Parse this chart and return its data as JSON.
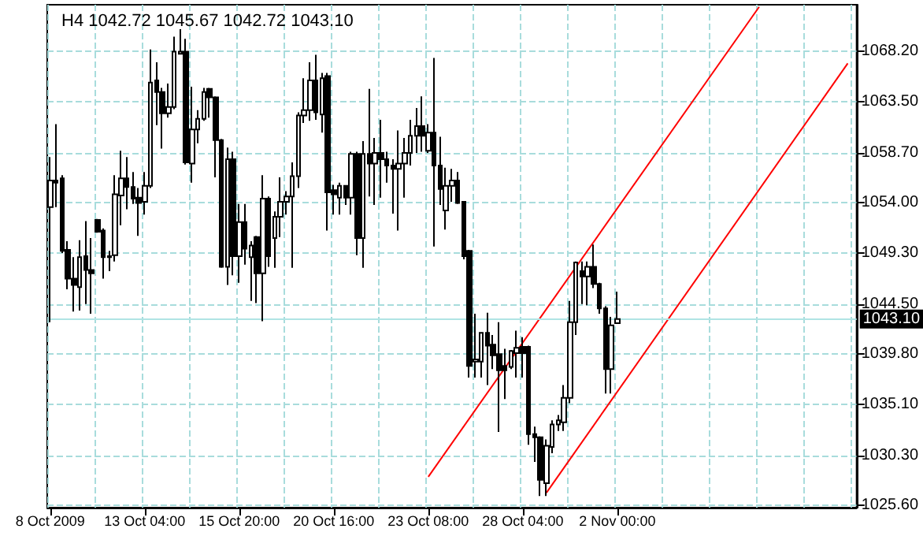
{
  "chart_data": {
    "type": "candlestick",
    "title": "H4 1042.72 1045.67 1042.72 1043.10",
    "categories": [
      "8 Oct 2009",
      null,
      null,
      null,
      null,
      null,
      null,
      null,
      null,
      null,
      null,
      null,
      null,
      null,
      null,
      null,
      "13 Oct 04:00",
      null,
      null,
      null,
      null,
      null,
      null,
      null,
      null,
      null,
      null,
      null,
      null,
      null,
      null,
      null,
      "15 Oct 20:00",
      null,
      null,
      null,
      null,
      null,
      null,
      null,
      null,
      null,
      null,
      null,
      null,
      null,
      null,
      null,
      "20 Oct 16:00",
      null,
      null,
      null,
      null,
      null,
      null,
      null,
      null,
      null,
      null,
      null,
      null,
      null,
      null,
      null,
      "23 Oct 08:00",
      null,
      null,
      null,
      null,
      null,
      null,
      null,
      null,
      null,
      null,
      null,
      null,
      null,
      null,
      null,
      "28 Oct 04:00",
      null,
      null,
      null,
      null,
      null,
      null,
      null,
      null,
      null,
      null,
      null,
      null,
      null,
      null,
      null,
      "2 Nov 00:00",
      null,
      null,
      null,
      null,
      null,
      null,
      null,
      null,
      null,
      null,
      null,
      null,
      null,
      null,
      null,
      null,
      null,
      null,
      null,
      null,
      null,
      null,
      null,
      null,
      null,
      null,
      null,
      null,
      null,
      null,
      null,
      null,
      null,
      null,
      null,
      null,
      null,
      null,
      null,
      null
    ],
    "ohlc": [
      [
        1053.6,
        1058.3,
        1042.8,
        1056.1
      ],
      [
        1056.1,
        1061.4,
        1053.6,
        1055.9
      ],
      [
        1056.3,
        1056.6,
        1049.3,
        1049.5
      ],
      [
        1049.6,
        1050.4,
        1045.9,
        1046.9
      ],
      [
        1046.9,
        1048.9,
        1043.8,
        1046.3
      ],
      [
        1046.1,
        1050.5,
        1043.9,
        1048.9
      ],
      [
        1049.0,
        1052.3,
        1044.5,
        1047.7
      ],
      [
        1047.7,
        1050.7,
        1043.6,
        1047.4
      ],
      [
        1052.4,
        1052.5,
        1051.2,
        1051.3
      ],
      [
        1051.4,
        1051.6,
        1046.9,
        1048.9
      ],
      [
        1048.9,
        1049.5,
        1047.6,
        1049.0
      ],
      [
        1049.1,
        1056.6,
        1048.5,
        1054.8
      ],
      [
        1054.7,
        1058.9,
        1051.9,
        1056.3
      ],
      [
        1056.3,
        1058.3,
        1053.4,
        1055.5
      ],
      [
        1055.5,
        1056.9,
        1053.9,
        1054.4
      ],
      [
        1054.5,
        1055.4,
        1050.9,
        1054.0
      ],
      [
        1054.1,
        1056.9,
        1052.9,
        1055.6
      ],
      [
        1055.6,
        1068.4,
        1055.4,
        1065.3
      ],
      [
        1065.5,
        1067.2,
        1061.3,
        1064.4
      ],
      [
        1064.4,
        1064.8,
        1059.1,
        1062.4
      ],
      [
        1062.4,
        1065.2,
        1062.0,
        1063.0
      ],
      [
        1063.0,
        1069.6,
        1062.8,
        1068.2
      ],
      [
        1068.0,
        1070.3,
        1068.0,
        1068.2
      ],
      [
        1068.2,
        1069.4,
        1057.6,
        1057.8
      ],
      [
        1057.7,
        1064.9,
        1055.9,
        1060.9
      ],
      [
        1060.9,
        1062.7,
        1059.6,
        1061.9
      ],
      [
        1061.9,
        1064.8,
        1061.7,
        1064.4
      ],
      [
        1064.7,
        1064.8,
        1062.0,
        1063.9
      ],
      [
        1063.9,
        1064.0,
        1056.4,
        1059.9
      ],
      [
        1059.9,
        1060.0,
        1047.9,
        1048.0
      ],
      [
        1048.0,
        1059.2,
        1046.3,
        1058.1
      ],
      [
        1058.1,
        1058.8,
        1047.2,
        1049.0
      ],
      [
        1049.0,
        1053.9,
        1046.5,
        1052.2
      ],
      [
        1052.2,
        1053.9,
        1048.2,
        1049.7
      ],
      [
        1048.9,
        1050.4,
        1044.8,
        1050.0
      ],
      [
        1050.8,
        1050.9,
        1044.6,
        1047.4
      ],
      [
        1047.4,
        1056.6,
        1042.9,
        1054.4
      ],
      [
        1054.4,
        1054.6,
        1048.0,
        1049.0
      ],
      [
        1050.7,
        1053.2,
        1047.9,
        1052.7
      ],
      [
        1052.7,
        1056.4,
        1050.8,
        1054.1
      ],
      [
        1054.1,
        1055.1,
        1052.9,
        1054.6
      ],
      [
        1054.6,
        1057.8,
        1047.9,
        1056.5
      ],
      [
        1056.5,
        1062.5,
        1055.4,
        1062.2
      ],
      [
        1062.2,
        1065.7,
        1061.5,
        1062.7
      ],
      [
        1062.7,
        1067.2,
        1061.7,
        1065.5
      ],
      [
        1065.5,
        1067.9,
        1061.8,
        1062.5
      ],
      [
        1062.3,
        1066.2,
        1060.6,
        1065.7
      ],
      [
        1065.9,
        1066.2,
        1051.4,
        1055.0
      ],
      [
        1055.2,
        1055.7,
        1052.9,
        1054.8
      ],
      [
        1054.5,
        1055.9,
        1052.9,
        1055.6
      ],
      [
        1055.6,
        1055.6,
        1053.8,
        1054.5
      ],
      [
        1054.5,
        1058.8,
        1052.9,
        1058.6
      ],
      [
        1058.6,
        1058.8,
        1049.1,
        1050.7
      ],
      [
        1050.7,
        1059.8,
        1047.9,
        1058.6
      ],
      [
        1058.6,
        1064.7,
        1054.6,
        1057.7
      ],
      [
        1057.7,
        1060.1,
        1053.8,
        1058.7
      ],
      [
        1058.7,
        1061.8,
        1054.5,
        1058.1
      ],
      [
        1058.1,
        1058.8,
        1055.9,
        1057.5
      ],
      [
        1057.5,
        1058.1,
        1053.0,
        1057.2
      ],
      [
        1057.2,
        1060.8,
        1051.4,
        1057.7
      ],
      [
        1057.7,
        1060.1,
        1054.5,
        1058.7
      ],
      [
        1058.7,
        1061.8,
        1057.5,
        1060.3
      ],
      [
        1060.3,
        1062.9,
        1058.7,
        1061.2
      ],
      [
        1061.2,
        1064.0,
        1058.8,
        1060.3
      ],
      [
        1058.9,
        1061.4,
        1058.7,
        1060.6
      ],
      [
        1060.6,
        1067.6,
        1049.9,
        1057.5
      ],
      [
        1057.5,
        1060.2,
        1053.8,
        1055.3
      ],
      [
        1053.3,
        1057.3,
        1051.5,
        1055.6
      ],
      [
        1055.6,
        1057.2,
        1054.1,
        1056.1
      ],
      [
        1056.1,
        1056.9,
        1053.9,
        1054.0
      ],
      [
        1054.1,
        1054.1,
        1048.7,
        1049.0
      ],
      [
        1049.5,
        1049.6,
        1037.6,
        1038.7
      ],
      [
        1039.1,
        1043.6,
        1037.6,
        1039.3
      ],
      [
        1039.1,
        1041.8,
        1037.6,
        1041.8
      ],
      [
        1041.8,
        1043.7,
        1036.9,
        1040.6
      ],
      [
        1040.7,
        1041.6,
        1038.4,
        1039.7
      ],
      [
        1039.8,
        1042.8,
        1032.5,
        1038.3
      ],
      [
        1038.7,
        1040.3,
        1035.6,
        1038.3
      ],
      [
        1038.6,
        1040.2,
        1038.4,
        1040.1
      ],
      [
        1039.9,
        1042.0,
        1037.6,
        1040.4
      ],
      [
        1040.5,
        1041.4,
        1037.6,
        1039.9
      ],
      [
        1040.5,
        1040.6,
        1031.3,
        1032.3
      ],
      [
        1032.3,
        1033.0,
        1029.7,
        1032.0
      ],
      [
        1032.0,
        1032.1,
        1026.5,
        1028.0
      ],
      [
        1027.7,
        1031.8,
        1026.5,
        1031.2
      ],
      [
        1031.1,
        1033.6,
        1030.5,
        1033.2
      ],
      [
        1033.2,
        1034.1,
        1032.6,
        1033.6
      ],
      [
        1033.4,
        1036.9,
        1032.6,
        1035.7
      ],
      [
        1035.7,
        1044.8,
        1035.2,
        1042.8
      ],
      [
        1042.8,
        1048.5,
        1041.6,
        1048.4
      ],
      [
        1047.6,
        1048.5,
        1044.5,
        1047.1
      ],
      [
        1047.1,
        1048.5,
        1044.4,
        1048.0
      ],
      [
        1048.0,
        1050.1,
        1046.0,
        1046.4
      ],
      [
        1046.4,
        1046.5,
        1043.6,
        1044.1
      ],
      [
        1044.1,
        1044.3,
        1036.1,
        1038.4
      ],
      [
        1038.4,
        1043.3,
        1036.1,
        1042.5
      ],
      [
        1042.72,
        1045.67,
        1042.72,
        1043.1
      ],
      null,
      null,
      null,
      null,
      null,
      null,
      null,
      null,
      null,
      null,
      null,
      null,
      null,
      null,
      null,
      null,
      null,
      null,
      null,
      null,
      null,
      null,
      null,
      null,
      null,
      null,
      null,
      null,
      null,
      null,
      null,
      null,
      null,
      null,
      null,
      null,
      null,
      null,
      null,
      null
    ],
    "series": [
      {
        "type": "line",
        "color": "#ff0000",
        "values": [
          null,
          null,
          null,
          null,
          null,
          null,
          null,
          null,
          null,
          null,
          null,
          null,
          null,
          null,
          null,
          null,
          null,
          null,
          null,
          null,
          null,
          null,
          null,
          null,
          null,
          null,
          null,
          null,
          null,
          null,
          null,
          null,
          null,
          null,
          null,
          null,
          null,
          null,
          null,
          null,
          null,
          null,
          null,
          null,
          null,
          null,
          null,
          null,
          null,
          null,
          null,
          null,
          null,
          null,
          null,
          null,
          null,
          null,
          null,
          null,
          null,
          null,
          null,
          null,
          1028.3,
          null,
          null,
          null,
          null,
          null,
          null,
          null,
          null,
          null,
          null,
          null,
          null,
          null,
          null,
          null,
          null,
          null,
          null,
          null,
          null,
          null,
          null,
          null,
          null,
          null,
          null,
          null,
          null,
          null,
          null,
          null,
          null,
          null,
          null,
          null,
          null,
          null,
          null,
          null,
          null,
          null,
          null,
          null,
          null,
          null,
          null,
          null,
          null,
          null,
          null,
          null,
          null,
          null,
          null,
          null,
          1072.4,
          null,
          null,
          null,
          null,
          null,
          null,
          null,
          null,
          null,
          null,
          null,
          null,
          null,
          null,
          null,
          null
        ]
      },
      {
        "type": "line",
        "color": "#ff0000",
        "values": [
          null,
          null,
          null,
          null,
          null,
          null,
          null,
          null,
          null,
          null,
          null,
          null,
          null,
          null,
          null,
          null,
          null,
          null,
          null,
          null,
          null,
          null,
          null,
          null,
          null,
          null,
          null,
          null,
          null,
          null,
          null,
          null,
          null,
          null,
          null,
          null,
          null,
          null,
          null,
          null,
          null,
          null,
          null,
          null,
          null,
          null,
          null,
          null,
          null,
          null,
          null,
          null,
          null,
          null,
          null,
          null,
          null,
          null,
          null,
          null,
          null,
          null,
          null,
          null,
          null,
          null,
          null,
          null,
          null,
          null,
          null,
          null,
          null,
          null,
          null,
          null,
          null,
          null,
          null,
          null,
          null,
          null,
          null,
          null,
          1026.8,
          null,
          null,
          null,
          null,
          null,
          null,
          null,
          null,
          null,
          null,
          null,
          null,
          null,
          null,
          null,
          null,
          null,
          null,
          null,
          null,
          null,
          null,
          null,
          null,
          null,
          null,
          null,
          null,
          null,
          null,
          null,
          null,
          null,
          null,
          null,
          null,
          null,
          null,
          null,
          null,
          null,
          null,
          null,
          null,
          null,
          null,
          null,
          null,
          null,
          null,
          1067.1,
          null
        ]
      }
    ],
    "ylim": [
      1025.4,
      1072.6
    ],
    "yticks": [
      {
        "value": 1025.6,
        "label": "1025.60"
      },
      {
        "value": 1030.3,
        "label": "1030.30"
      },
      {
        "value": 1035.1,
        "label": "1035.10"
      },
      {
        "value": 1039.8,
        "label": "1039.80"
      },
      {
        "value": 1044.5,
        "label": "1044.50"
      },
      {
        "value": 1049.3,
        "label": "1049.30"
      },
      {
        "value": 1054.0,
        "label": "1054.00"
      },
      {
        "value": 1058.7,
        "label": "1058.70"
      },
      {
        "value": 1063.5,
        "label": "1063.50"
      },
      {
        "value": 1068.2,
        "label": "1068.20"
      }
    ],
    "ref_lines": [
      {
        "axis": "y",
        "value": 1043.1,
        "label": "1043.10",
        "color": "#b0e4e4"
      }
    ],
    "grid": true
  }
}
